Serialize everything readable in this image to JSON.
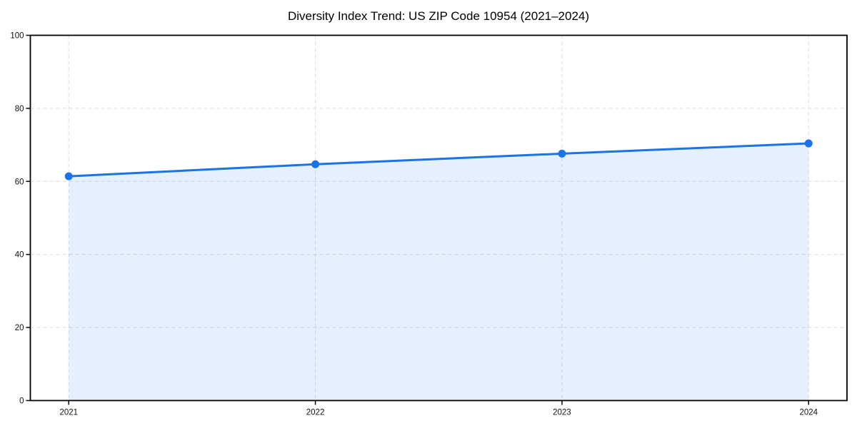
{
  "chart_data": {
    "type": "area",
    "title": "Diversity Index Trend: US ZIP Code 10954 (2021–2024)",
    "x": [
      2021,
      2022,
      2023,
      2024
    ],
    "xticks": [
      "2021",
      "2022",
      "2023",
      "2024"
    ],
    "values": [
      61.4,
      64.7,
      67.6,
      70.4
    ],
    "yticks": [
      0,
      20,
      40,
      60,
      80,
      100
    ],
    "ylim": [
      0,
      100
    ],
    "xlabel": "",
    "ylabel": "",
    "grid": true,
    "grid_style": "dashed",
    "legend": false,
    "marker": "circle",
    "colors": {
      "line": "#1a73e8",
      "fill": "#1a73e8",
      "fill_opacity": 0.11,
      "grid": "#dcdcdc",
      "axis": "#000000",
      "text": "#111111"
    }
  }
}
